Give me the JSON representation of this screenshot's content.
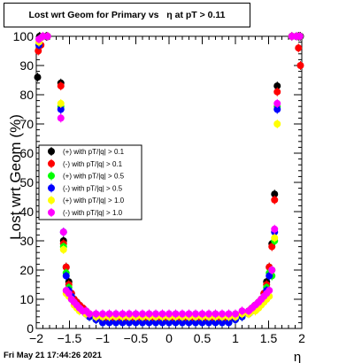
{
  "chart_data": {
    "type": "scatter",
    "title": "Lost wrt Geom for Primary vs   η at pT > 0.11",
    "xlabel": "η",
    "ylabel": "Lost wrt Geom (%)",
    "xlim": [
      -2,
      2
    ],
    "ylim": [
      0,
      100
    ],
    "x_ticks": [
      "−2",
      "−1.5",
      "−1",
      "−0.5",
      "0",
      "0.5",
      "1",
      "1.5",
      "2"
    ],
    "y_ticks": [
      "0",
      "10",
      "20",
      "30",
      "40",
      "50",
      "60",
      "70",
      "80",
      "90",
      "100"
    ],
    "grid": false,
    "legend_position": "center-left",
    "series": [
      {
        "name": "(+) with pT/|q| > 0.1",
        "color": "#000000",
        "x": [
          -1.98,
          -1.95,
          -1.85,
          -1.63,
          -1.59,
          -1.55,
          -1.51,
          -1.47,
          -1.43,
          -1.39,
          -1.35,
          -1.3,
          -1.25,
          -1.2,
          -1.1,
          -1.0,
          -0.9,
          -0.8,
          -0.7,
          -0.6,
          -0.5,
          -0.4,
          -0.3,
          -0.2,
          -0.1,
          0.0,
          0.1,
          0.2,
          0.3,
          0.4,
          0.5,
          0.6,
          0.7,
          0.8,
          0.9,
          1.0,
          1.1,
          1.2,
          1.25,
          1.3,
          1.35,
          1.39,
          1.43,
          1.47,
          1.51,
          1.55,
          1.59,
          1.63,
          1.85,
          1.95,
          1.98
        ],
        "y": [
          86,
          100,
          100,
          84,
          30,
          21,
          16,
          12,
          10,
          9,
          8,
          7,
          6,
          5,
          4,
          3,
          3,
          3,
          3,
          3,
          3,
          3,
          3,
          3,
          3,
          3,
          3,
          3,
          3,
          3,
          3,
          3,
          3,
          3,
          3,
          4,
          5,
          6,
          7,
          8,
          9,
          10,
          12,
          16,
          21,
          29,
          46,
          83,
          100,
          100,
          100
        ]
      },
      {
        "name": "(-) with pT/|q| > 0.1",
        "color": "#ff0000",
        "x": [
          -1.97,
          -1.93,
          -1.83,
          -1.63,
          -1.59,
          -1.55,
          -1.51,
          -1.47,
          -1.43,
          -1.39,
          -1.35,
          -1.3,
          -1.25,
          -1.2,
          -1.1,
          -1.0,
          -0.9,
          -0.8,
          -0.7,
          -0.6,
          -0.5,
          -0.4,
          -0.3,
          -0.2,
          -0.1,
          0.0,
          0.1,
          0.2,
          0.3,
          0.4,
          0.5,
          0.6,
          0.7,
          0.8,
          0.9,
          1.0,
          1.1,
          1.2,
          1.25,
          1.3,
          1.35,
          1.39,
          1.43,
          1.47,
          1.51,
          1.55,
          1.59,
          1.63,
          1.85,
          1.95,
          1.98
        ],
        "y": [
          95,
          97,
          100,
          83,
          29,
          21,
          15,
          12,
          10,
          9,
          8,
          7,
          6,
          5,
          4,
          3,
          3,
          3,
          3,
          3,
          3,
          3,
          3,
          3,
          3,
          3,
          3,
          3,
          3,
          3,
          3,
          3,
          3,
          3,
          3,
          4,
          5,
          6,
          7,
          8,
          9,
          10,
          12,
          15,
          21,
          28,
          44,
          81,
          100,
          96,
          90
        ]
      },
      {
        "name": "(+) with pT/|q| > 0.5",
        "color": "#00ff00",
        "x": [
          -1.96,
          -1.9,
          -1.83,
          -1.63,
          -1.59,
          -1.55,
          -1.51,
          -1.47,
          -1.43,
          -1.39,
          -1.35,
          -1.3,
          -1.25,
          -1.2,
          -1.1,
          -1.0,
          -0.9,
          -0.8,
          -0.7,
          -0.6,
          -0.5,
          -0.4,
          -0.3,
          -0.2,
          -0.1,
          0.0,
          0.1,
          0.2,
          0.3,
          0.4,
          0.5,
          0.6,
          0.7,
          0.8,
          0.9,
          1.0,
          1.1,
          1.2,
          1.25,
          1.3,
          1.35,
          1.39,
          1.43,
          1.47,
          1.51,
          1.55,
          1.59,
          1.63,
          1.85,
          1.92,
          1.97
        ],
        "y": [
          97,
          100,
          100,
          76,
          28,
          19,
          14,
          11,
          9,
          8,
          7,
          6,
          5,
          4,
          3,
          2,
          2,
          2,
          2,
          2,
          2,
          2,
          2,
          2,
          2,
          2,
          2,
          2,
          2,
          2,
          2,
          2,
          2,
          2,
          2,
          3,
          4,
          5,
          6,
          7,
          8,
          9,
          11,
          14,
          19,
          18,
          30,
          76,
          100,
          100,
          100
        ]
      },
      {
        "name": "(-) with pT/|q| > 0.5",
        "color": "#0000ff",
        "x": [
          -1.96,
          -1.9,
          -1.83,
          -1.63,
          -1.59,
          -1.55,
          -1.51,
          -1.47,
          -1.43,
          -1.39,
          -1.35,
          -1.3,
          -1.25,
          -1.2,
          -1.1,
          -1.0,
          -0.9,
          -0.8,
          -0.7,
          -0.6,
          -0.5,
          -0.4,
          -0.3,
          -0.2,
          -0.1,
          0.0,
          0.1,
          0.2,
          0.3,
          0.4,
          0.5,
          0.6,
          0.7,
          0.8,
          0.9,
          1.0,
          1.1,
          1.2,
          1.25,
          1.3,
          1.35,
          1.39,
          1.43,
          1.47,
          1.51,
          1.55,
          1.59,
          1.63,
          1.85,
          1.92,
          1.97
        ],
        "y": [
          97,
          100,
          100,
          75,
          33,
          18,
          13,
          11,
          9,
          8,
          7,
          6,
          5,
          4,
          3,
          2,
          2,
          2,
          2,
          2,
          2,
          2,
          2,
          2,
          2,
          2,
          2,
          2,
          2,
          2,
          2,
          2,
          2,
          2,
          2,
          3,
          4,
          5,
          6,
          7,
          8,
          9,
          11,
          13,
          18,
          20,
          33,
          75,
          100,
          100,
          100
        ]
      },
      {
        "name": "(+) with pT/|q| > 1.0",
        "color": "#ffff00",
        "x": [
          -1.96,
          -1.9,
          -1.83,
          -1.63,
          -1.59,
          -1.55,
          -1.51,
          -1.47,
          -1.43,
          -1.39,
          -1.35,
          -1.3,
          -1.25,
          -1.2,
          -1.1,
          -1.0,
          -0.9,
          -0.8,
          -0.7,
          -0.6,
          -0.5,
          -0.4,
          -0.3,
          -0.2,
          -0.1,
          0.0,
          0.1,
          0.2,
          0.3,
          0.4,
          0.5,
          0.6,
          0.7,
          0.8,
          0.9,
          1.0,
          1.1,
          1.2,
          1.25,
          1.3,
          1.35,
          1.39,
          1.43,
          1.47,
          1.51,
          1.55,
          1.59,
          1.63,
          1.85,
          1.92,
          1.97
        ],
        "y": [
          98,
          100,
          100,
          77,
          27,
          12,
          11,
          10,
          8,
          7,
          6,
          6,
          5,
          5,
          4,
          4,
          4,
          4,
          4,
          4,
          4,
          4,
          4,
          4,
          4,
          4,
          4,
          4,
          4,
          4,
          4,
          4,
          4,
          4,
          4,
          4,
          5,
          5,
          6,
          6,
          7,
          8,
          9,
          10,
          11,
          20,
          31,
          70,
          100,
          100,
          100
        ]
      },
      {
        "name": "(-) with pT/|q| > 1.0",
        "color": "#ff00ff",
        "x": [
          -1.96,
          -1.9,
          -1.83,
          -1.63,
          -1.59,
          -1.55,
          -1.51,
          -1.47,
          -1.43,
          -1.39,
          -1.35,
          -1.3,
          -1.25,
          -1.2,
          -1.1,
          -1.0,
          -0.9,
          -0.8,
          -0.7,
          -0.6,
          -0.5,
          -0.4,
          -0.3,
          -0.2,
          -0.1,
          0.0,
          0.1,
          0.2,
          0.3,
          0.4,
          0.5,
          0.6,
          0.7,
          0.8,
          0.9,
          1.0,
          1.1,
          1.2,
          1.25,
          1.3,
          1.35,
          1.39,
          1.43,
          1.47,
          1.51,
          1.55,
          1.59,
          1.63,
          1.85,
          1.92,
          1.97
        ],
        "y": [
          99,
          100,
          100,
          72,
          33,
          13,
          12,
          10,
          9,
          8,
          7,
          6,
          6,
          5,
          5,
          5,
          5,
          5,
          5,
          5,
          5,
          5,
          5,
          5,
          5,
          5,
          5,
          5,
          5,
          5,
          5,
          5,
          5,
          5,
          5,
          5,
          6,
          6,
          7,
          8,
          9,
          10,
          11,
          12,
          13,
          20,
          34,
          77,
          100,
          100,
          100
        ]
      }
    ]
  },
  "footer": {
    "date": "Fri May 21 17:44:26 2021"
  }
}
